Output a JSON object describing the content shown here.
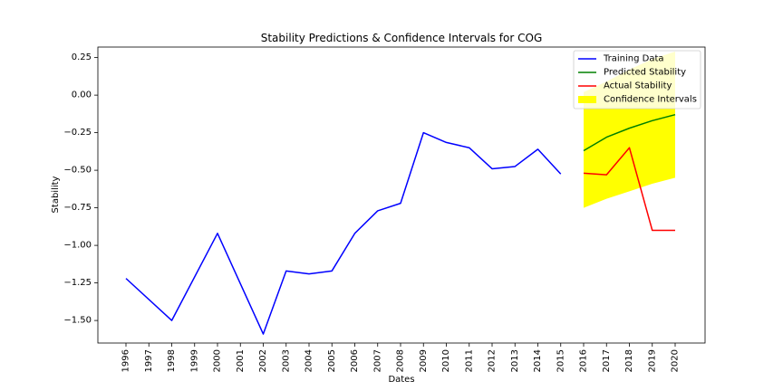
{
  "chart_data": {
    "type": "line",
    "title": "Stability Predictions & Confidence Intervals for COG",
    "xlabel": "Dates",
    "ylabel": "Stability",
    "ylim": [
      -1.65,
      0.32
    ],
    "y_ticks": [
      0.25,
      0.0,
      -0.25,
      -0.5,
      -0.75,
      -1.0,
      -1.25,
      -1.5
    ],
    "y_tick_labels": [
      "0.25",
      "0.00",
      "−0.25",
      "−0.50",
      "−0.75",
      "−1.00",
      "−1.25",
      "−1.50"
    ],
    "categories": [
      "1996",
      "1997",
      "1998",
      "1999",
      "2000",
      "2001",
      "2002",
      "2003",
      "2004",
      "2005",
      "2006",
      "2007",
      "2008",
      "2009",
      "2010",
      "2011",
      "2012",
      "2013",
      "2014",
      "2015",
      "2016",
      "2017",
      "2018",
      "2019",
      "2020"
    ],
    "grid": false,
    "legend_position": "top-right",
    "series": [
      {
        "name": "Training Data",
        "color": "#0000ff",
        "x": [
          "1996",
          "1998",
          "2000",
          "2002",
          "2003",
          "2004",
          "2005",
          "2006",
          "2007",
          "2008",
          "2009",
          "2010",
          "2011",
          "2012",
          "2013",
          "2014",
          "2015"
        ],
        "values": [
          -1.22,
          -1.5,
          -0.92,
          -1.59,
          -1.17,
          -1.19,
          -1.17,
          -0.92,
          -0.77,
          -0.72,
          -0.25,
          -0.315,
          -0.35,
          -0.49,
          -0.475,
          -0.36,
          -0.525
        ]
      },
      {
        "name": "Predicted Stability",
        "color": "#008000",
        "x": [
          "2016",
          "2017",
          "2018",
          "2019",
          "2020"
        ],
        "values": [
          -0.37,
          -0.28,
          -0.22,
          -0.17,
          -0.13
        ]
      },
      {
        "name": "Actual Stability",
        "color": "#ff0000",
        "x": [
          "2016",
          "2017",
          "2018",
          "2019",
          "2020"
        ],
        "values": [
          -0.52,
          -0.53,
          -0.35,
          -0.9,
          -0.9
        ]
      }
    ],
    "confidence_interval": {
      "name": "Confidence Intervals",
      "color": "#ffff00",
      "x": [
        "2016",
        "2017",
        "2018",
        "2019",
        "2020"
      ],
      "upper": [
        0.02,
        0.09,
        0.17,
        0.24,
        0.29
      ],
      "lower": [
        -0.75,
        -0.69,
        -0.64,
        -0.59,
        -0.55
      ]
    }
  }
}
